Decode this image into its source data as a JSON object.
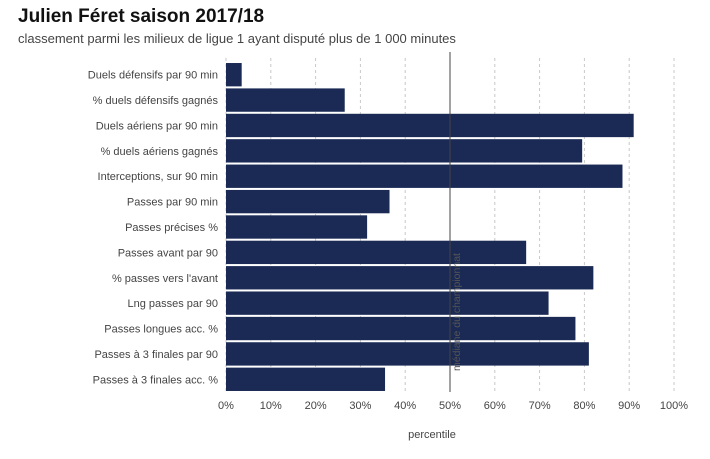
{
  "chart_data": {
    "type": "bar",
    "orientation": "horizontal",
    "title": "Julien Féret saison 2017/18",
    "subtitle": "classement parmi les milieux de ligue 1 ayant disputé plus de 1 000 minutes",
    "xlabel": "percentile",
    "ylabel": "",
    "xlim": [
      0,
      100
    ],
    "x_ticks": [
      0,
      10,
      20,
      30,
      40,
      50,
      60,
      70,
      80,
      90,
      100
    ],
    "x_tick_labels": [
      "0%",
      "10%",
      "20%",
      "30%",
      "40%",
      "50%",
      "60%",
      "70%",
      "80%",
      "90%",
      "100%"
    ],
    "grid": "vertical-dashed",
    "categories": [
      "Duels défensifs par 90 min",
      "% duels défensifs gagnés",
      "Duels aériens par 90 min",
      "% duels aériens gagnés",
      "Interceptions, sur 90 min",
      "Passes par 90 min",
      "Passes précises %",
      "Passes avant par 90",
      "% passes vers l'avant",
      "Lng passes par 90",
      "Passes longues acc. %",
      "Passes à 3 finales par 90",
      "Passes à 3 finales acc. %"
    ],
    "values": [
      3.5,
      26.5,
      91,
      79.5,
      88.5,
      36.5,
      31.5,
      67,
      82,
      72,
      78,
      81,
      35.5
    ],
    "bar_color": "#1b2a55",
    "reference_line": {
      "value": 50,
      "label": "médiane du championnat",
      "color": "#444444"
    }
  }
}
